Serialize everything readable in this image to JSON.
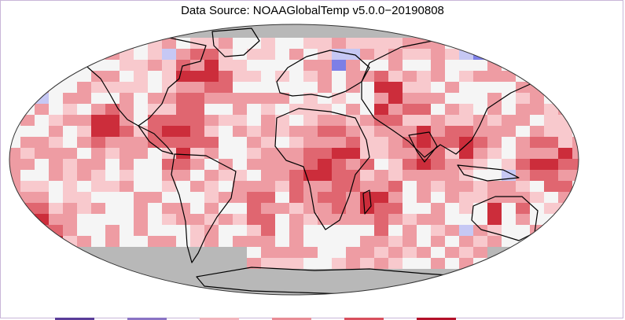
{
  "title": "Data Source: NOAAGlobalTemp v5.0.0−20190808",
  "colors": {
    "no_data": "#b8b8b8",
    "near_zero": "#f5f5f5",
    "warm_1": "#f8c9cd",
    "warm_2": "#ee9ca3",
    "warm_3": "#e06670",
    "warm_4": "#cc2d3b",
    "cool_1": "#c6c8f4",
    "cool_2": "#7d7fe6",
    "coastline": "#000000"
  },
  "legend_colors": [
    "#5a3d99",
    "#8a74c4",
    "#f3b5bd",
    "#e98c96",
    "#d8505e",
    "#b3122a"
  ]
}
